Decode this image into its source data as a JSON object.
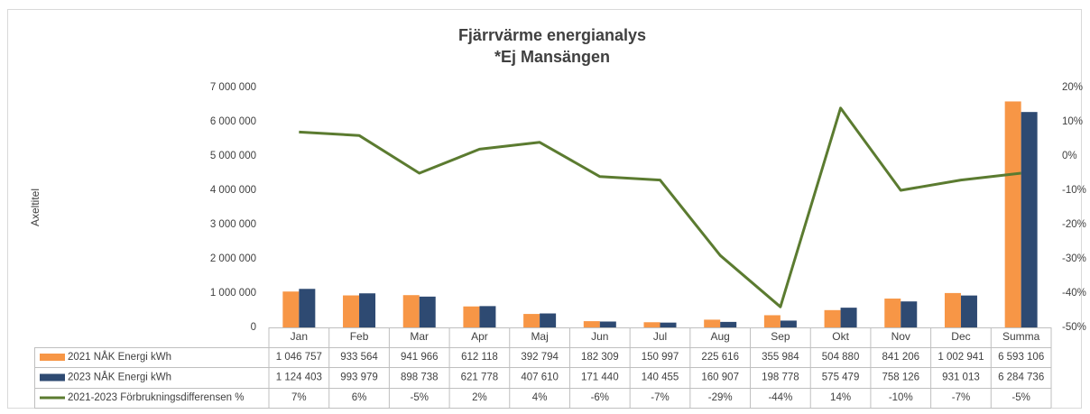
{
  "chart_data": {
    "type": "bar",
    "title": "Fjärrvärme energianalys",
    "subtitle": "*Ej Mansängen",
    "y_label": "Axeltitel",
    "categories": [
      "Jan",
      "Feb",
      "Mar",
      "Apr",
      "Maj",
      "Jun",
      "Jul",
      "Aug",
      "Sep",
      "Okt",
      "Nov",
      "Dec",
      "Summa"
    ],
    "series": [
      {
        "name": "2021 NÅK Energi kWh",
        "color": "#f79646",
        "type": "bar",
        "values": [
          1046757,
          933564,
          941966,
          612118,
          392794,
          182309,
          150997,
          225616,
          355984,
          504880,
          841206,
          1002941,
          6593106
        ],
        "value_labels": [
          "1 046 757",
          "933 564",
          "941 966",
          "612 118",
          "392 794",
          "182 309",
          "150 997",
          "225 616",
          "355 984",
          "504 880",
          "841 206",
          "1 002 941",
          "6 593 106"
        ]
      },
      {
        "name": "2023 NÅK Energi kWh",
        "color": "#2e4a72",
        "type": "bar",
        "values": [
          1124403,
          993979,
          898738,
          621778,
          407610,
          171440,
          140455,
          160907,
          198778,
          575479,
          758126,
          931013,
          6284736
        ],
        "value_labels": [
          "1 124 403",
          "993 979",
          "898 738",
          "621 778",
          "407 610",
          "171 440",
          "140 455",
          "160 907",
          "198 778",
          "575 479",
          "758 126",
          "931 013",
          "6 284 736"
        ]
      },
      {
        "name": "2021-2023 Förbrukningsdifferensen %",
        "color": "#5b7b30",
        "type": "line",
        "axis": "y2",
        "values": [
          7,
          6,
          -5,
          2,
          4,
          -6,
          -7,
          -29,
          -44,
          14,
          -10,
          -7,
          -5
        ],
        "value_labels": [
          "7%",
          "6%",
          "-5%",
          "2%",
          "4%",
          "-6%",
          "-7%",
          "-29%",
          "-44%",
          "14%",
          "-10%",
          "-7%",
          "-5%"
        ]
      }
    ],
    "ylim": [
      0,
      7000000
    ],
    "yticks": [
      0,
      {
        "value": 1000000,
        "label": "1 000 000"
      },
      {
        "value": 2000000,
        "label": "2 000 000"
      },
      {
        "value": 3000000,
        "label": "3 000 000"
      },
      {
        "value": 4000000,
        "label": "4 000 000"
      },
      {
        "value": 5000000,
        "label": "5 000 000"
      },
      {
        "value": 6000000,
        "label": "6 000 000"
      },
      {
        "value": 7000000,
        "label": "7 000 000"
      }
    ],
    "y2lim": [
      -50,
      20
    ],
    "y2ticks": [
      {
        "value": -50,
        "label": "-50%"
      },
      {
        "value": -40,
        "label": "-40%"
      },
      {
        "value": -30,
        "label": "-30%"
      },
      {
        "value": -20,
        "label": "-20%"
      },
      {
        "value": -10,
        "label": "-10%"
      },
      {
        "value": 0,
        "label": "0%"
      },
      {
        "value": 10,
        "label": "10%"
      },
      {
        "value": 20,
        "label": "20%"
      }
    ],
    "grid": false
  }
}
